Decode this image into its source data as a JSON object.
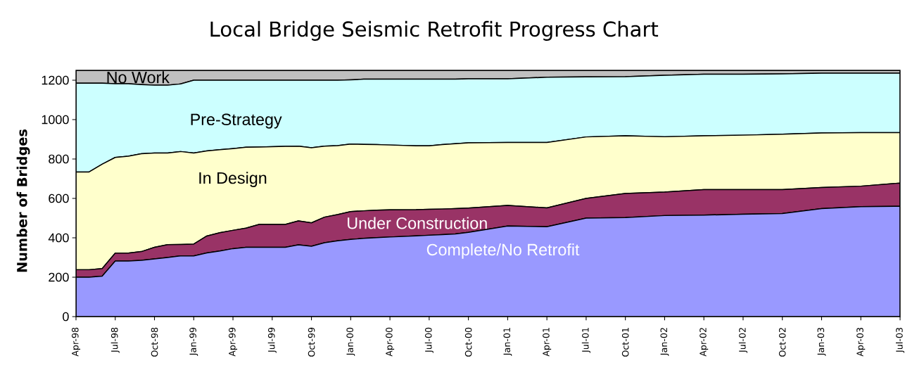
{
  "chart_data": {
    "type": "area",
    "stacked": true,
    "title": "Local Bridge Seismic Retrofit Progress Chart",
    "ylabel": "Number of Bridges",
    "x": [
      "1998-04",
      "1998-05",
      "1998-06",
      "1998-07",
      "1998-08",
      "1998-09",
      "1998-10",
      "1998-11",
      "1998-12",
      "1999-01",
      "1999-02",
      "1999-03",
      "1999-04",
      "1999-05",
      "1999-06",
      "1999-08",
      "1999-09",
      "1999-10",
      "1999-11",
      "1999-12",
      "2000-01",
      "2000-02",
      "2000-03",
      "2000-04",
      "2000-06",
      "2000-07",
      "2000-08",
      "2000-09",
      "2000-10",
      "2001-01",
      "2001-04",
      "2001-07",
      "2001-10",
      "2002-01",
      "2002-04",
      "2002-07",
      "2002-10",
      "2003-01",
      "2003-04",
      "2003-07"
    ],
    "series": [
      {
        "name": "Complete/No Retrofit",
        "color": "#9999ff",
        "values": [
          200,
          200,
          205,
          282,
          282,
          286,
          293,
          300,
          308,
          308,
          323,
          333,
          345,
          352,
          352,
          352,
          364,
          357,
          375,
          385,
          392,
          397,
          401,
          404,
          410,
          413,
          416,
          420,
          428,
          460,
          456,
          500,
          503,
          513,
          515,
          520,
          523,
          548,
          558,
          560
        ]
      },
      {
        "name": "Under Construction",
        "color": "#993366",
        "values": [
          38,
          38,
          39,
          40,
          40,
          44,
          59,
          65,
          58,
          60,
          86,
          93,
          93,
          97,
          116,
          116,
          122,
          119,
          130,
          133,
          141,
          140,
          139,
          138,
          133,
          132,
          130,
          128,
          123,
          104,
          96,
          100,
          122,
          119,
          130,
          125,
          122,
          107,
          104,
          118
        ]
      },
      {
        "name": "In Design",
        "color": "#ffffcc",
        "values": [
          496,
          496,
          530,
          486,
          492,
          497,
          478,
          465,
          472,
          462,
          432,
          421,
          415,
          411,
          393,
          396,
          379,
          381,
          360,
          350,
          343,
          337,
          333,
          329,
          324,
          322,
          327,
          330,
          331,
          320,
          332,
          312,
          293,
          281,
          273,
          276,
          281,
          277,
          272,
          256
        ]
      },
      {
        "name": "Pre-Strategy",
        "color": "#ccffff",
        "values": [
          451,
          451,
          411,
          374,
          368,
          351,
          345,
          345,
          343,
          370,
          359,
          353,
          347,
          340,
          339,
          336,
          335,
          343,
          335,
          332,
          326,
          331,
          332,
          334,
          338,
          338,
          332,
          327,
          325,
          323,
          331,
          305,
          300,
          312,
          312,
          309,
          306,
          304,
          302,
          302
        ]
      },
      {
        "name": "No Work",
        "color": "#c0c0c0",
        "values": [
          65,
          65,
          65,
          68,
          68,
          72,
          75,
          75,
          69,
          50,
          50,
          50,
          50,
          50,
          50,
          50,
          50,
          50,
          50,
          50,
          48,
          45,
          45,
          45,
          45,
          45,
          45,
          45,
          43,
          43,
          35,
          33,
          32,
          25,
          20,
          20,
          18,
          14,
          14,
          14
        ]
      }
    ],
    "xlim": [
      "1998-04",
      "2003-07"
    ],
    "xticks": [
      {
        "value": "1998-04",
        "label": "Apr-98"
      },
      {
        "value": "1998-07",
        "label": "Jul-98"
      },
      {
        "value": "1998-10",
        "label": "Oct-98"
      },
      {
        "value": "1999-01",
        "label": "Jan-99"
      },
      {
        "value": "1999-04",
        "label": "Apr-99"
      },
      {
        "value": "1999-07",
        "label": "Jul-99"
      },
      {
        "value": "1999-10",
        "label": "Oct-99"
      },
      {
        "value": "2000-01",
        "label": "Jan-00"
      },
      {
        "value": "2000-04",
        "label": "Apr-00"
      },
      {
        "value": "2000-07",
        "label": "Jul-00"
      },
      {
        "value": "2000-10",
        "label": "Oct-00"
      },
      {
        "value": "2001-01",
        "label": "Jan-01"
      },
      {
        "value": "2001-04",
        "label": "Apr-01"
      },
      {
        "value": "2001-07",
        "label": "Jul-01"
      },
      {
        "value": "2001-10",
        "label": "Oct-01"
      },
      {
        "value": "2002-01",
        "label": "Jan-02"
      },
      {
        "value": "2002-04",
        "label": "Apr-02"
      },
      {
        "value": "2002-07",
        "label": "Jul-02"
      },
      {
        "value": "2002-10",
        "label": "Oct-02"
      },
      {
        "value": "2003-01",
        "label": "Jan-03"
      },
      {
        "value": "2003-04",
        "label": "Apr-03"
      },
      {
        "value": "2003-07",
        "label": "Jul-03"
      }
    ],
    "ylim": [
      0,
      1250
    ],
    "yticks": [
      0,
      200,
      400,
      600,
      800,
      1000,
      1200
    ]
  }
}
